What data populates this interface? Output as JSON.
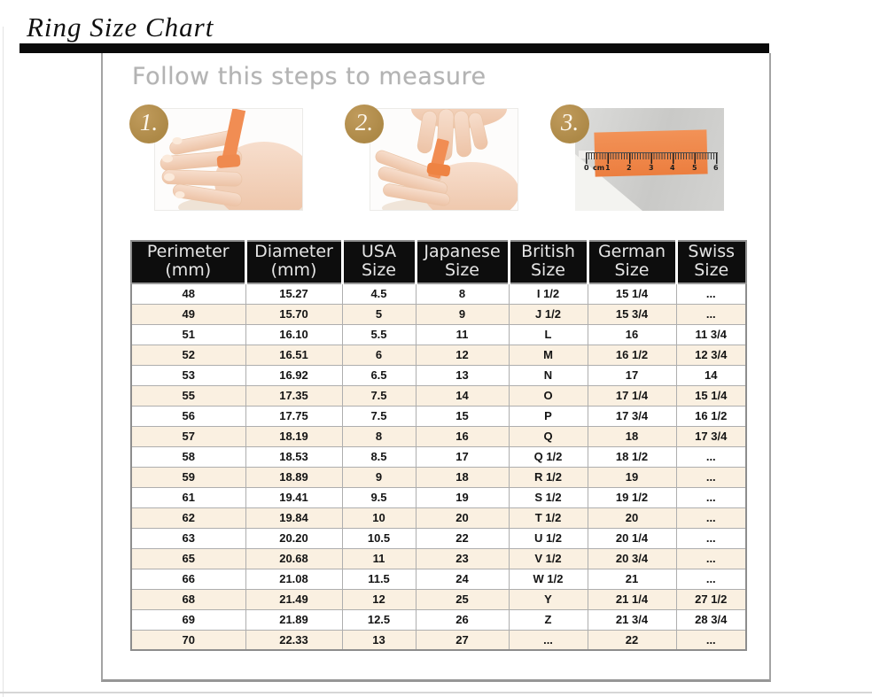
{
  "page": {
    "title": "Ring Size Chart",
    "subtitle": "Follow this steps to measure"
  },
  "steps": {
    "items": [
      {
        "number": "1.",
        "illustration": "hand-with-ribbon-on-finger"
      },
      {
        "number": "2.",
        "illustration": "hands-wrapping-ribbon"
      },
      {
        "number": "3.",
        "illustration": "ribbon-measured-on-ruler"
      }
    ],
    "ruler_labels": [
      "0",
      "cm",
      "1",
      "2",
      "3",
      "4",
      "5",
      "6"
    ]
  },
  "colors": {
    "accent_gold": "#b28c4e",
    "ribbon_orange": "#f08c50",
    "row_alt_cream": "#faf0e1",
    "header_bg": "#0d0d0d",
    "header_text": "#e5e5e5"
  },
  "chart_data": {
    "type": "table",
    "title": "Ring Size Chart",
    "columns": [
      {
        "line1": "Perimeter",
        "line2": "(mm)"
      },
      {
        "line1": "Diameter",
        "line2": "(mm)"
      },
      {
        "line1": "USA",
        "line2": "Size"
      },
      {
        "line1": "Japanese",
        "line2": "Size"
      },
      {
        "line1": "British",
        "line2": "Size"
      },
      {
        "line1": "German",
        "line2": "Size"
      },
      {
        "line1": "Swiss",
        "line2": "Size"
      }
    ],
    "rows": [
      [
        "48",
        "15.27",
        "4.5",
        "8",
        "I 1/2",
        "15 1/4",
        "..."
      ],
      [
        "49",
        "15.70",
        "5",
        "9",
        "J 1/2",
        "15 3/4",
        "..."
      ],
      [
        "51",
        "16.10",
        "5.5",
        "11",
        "L",
        "16",
        "11 3/4"
      ],
      [
        "52",
        "16.51",
        "6",
        "12",
        "M",
        "16 1/2",
        "12 3/4"
      ],
      [
        "53",
        "16.92",
        "6.5",
        "13",
        "N",
        "17",
        "14"
      ],
      [
        "55",
        "17.35",
        "7.5",
        "14",
        "O",
        "17 1/4",
        "15 1/4"
      ],
      [
        "56",
        "17.75",
        "7.5",
        "15",
        "P",
        "17 3/4",
        "16 1/2"
      ],
      [
        "57",
        "18.19",
        "8",
        "16",
        "Q",
        "18",
        "17 3/4"
      ],
      [
        "58",
        "18.53",
        "8.5",
        "17",
        "Q 1/2",
        "18 1/2",
        "..."
      ],
      [
        "59",
        "18.89",
        "9",
        "18",
        "R 1/2",
        "19",
        "..."
      ],
      [
        "61",
        "19.41",
        "9.5",
        "19",
        "S 1/2",
        "19 1/2",
        "..."
      ],
      [
        "62",
        "19.84",
        "10",
        "20",
        "T 1/2",
        "20",
        "..."
      ],
      [
        "63",
        "20.20",
        "10.5",
        "22",
        "U 1/2",
        "20 1/4",
        "..."
      ],
      [
        "65",
        "20.68",
        "11",
        "23",
        "V 1/2",
        "20 3/4",
        "..."
      ],
      [
        "66",
        "21.08",
        "11.5",
        "24",
        "W 1/2",
        "21",
        "..."
      ],
      [
        "68",
        "21.49",
        "12",
        "25",
        "Y",
        "21 1/4",
        "27 1/2"
      ],
      [
        "69",
        "21.89",
        "12.5",
        "26",
        "Z",
        "21 3/4",
        "28 3/4"
      ],
      [
        "70",
        "22.33",
        "13",
        "27",
        "...",
        "22",
        "..."
      ]
    ]
  }
}
